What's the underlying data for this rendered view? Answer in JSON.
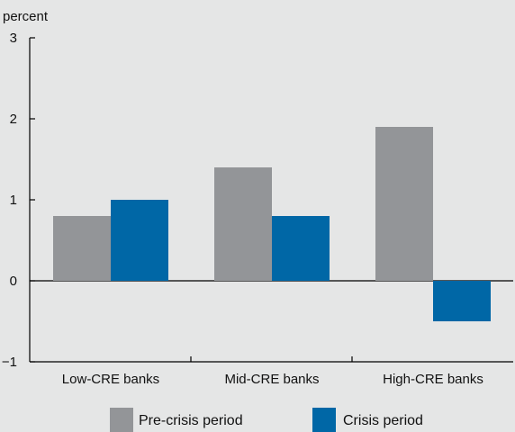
{
  "chart_data": {
    "type": "bar",
    "unit_label": "percent",
    "categories": [
      "Low-CRE banks",
      "Mid-CRE banks",
      "High-CRE banks"
    ],
    "series": [
      {
        "name": "Pre-crisis period",
        "color": "#939598",
        "values": [
          0.8,
          1.4,
          1.9
        ]
      },
      {
        "name": "Crisis period",
        "color": "#0067a6",
        "values": [
          1.0,
          0.8,
          -0.5
        ]
      }
    ],
    "ylim": [
      -1,
      3
    ],
    "yticks": [
      -1,
      0,
      1,
      2,
      3
    ],
    "ytick_labels": [
      "−1",
      "0",
      "1",
      "2",
      "3"
    ],
    "legend_position": "bottom",
    "grid": false
  }
}
